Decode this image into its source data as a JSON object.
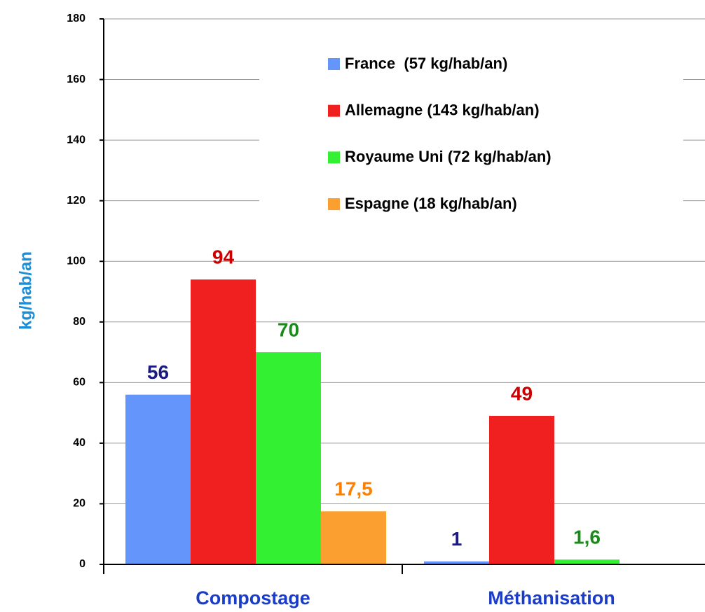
{
  "chart_data": {
    "type": "bar",
    "y_label": "kg/hab/an",
    "categories": [
      "Compostage",
      "Méthanisation"
    ],
    "series": [
      {
        "name": "France  (57 kg/hab/an)",
        "color": "#6495fa",
        "label_color": "#1a1a80",
        "values": [
          56,
          1
        ],
        "value_labels": [
          "56",
          "1"
        ]
      },
      {
        "name": "Allemagne (143 kg/hab/an)",
        "color": "#f02020",
        "label_color": "#cc0000",
        "values": [
          94,
          49
        ],
        "value_labels": [
          "94",
          "49"
        ]
      },
      {
        "name": "Royaume Uni (72 kg/hab/an)",
        "color": "#33f033",
        "label_color": "#1a8a1a",
        "values": [
          70,
          1.6
        ],
        "value_labels": [
          "70",
          "1,6"
        ]
      },
      {
        "name": "Espagne (18 kg/hab/an)",
        "color": "#fba030",
        "label_color": "#ff7f00",
        "values": [
          17.5,
          null
        ],
        "value_labels": [
          "17,5",
          null
        ]
      }
    ],
    "ylim": [
      0,
      180
    ],
    "yticks": [
      0,
      20,
      40,
      60,
      80,
      100,
      120,
      140,
      160,
      180
    ],
    "grid": true
  }
}
